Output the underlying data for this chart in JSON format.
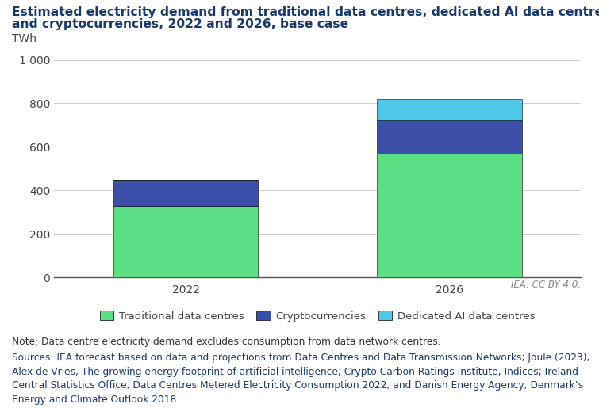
{
  "title_line1": "Estimated electricity demand from traditional data centres, dedicated AI data centres",
  "title_line2": "and cryptocurrencies, 2022 and 2026, base case",
  "categories": [
    "2022",
    "2026"
  ],
  "traditional": [
    330,
    570
  ],
  "cryptocurrencies": [
    120,
    150
  ],
  "dedicated_ai": [
    0,
    100
  ],
  "colors": {
    "traditional": "#5de085",
    "cryptocurrencies": "#3b4fa8",
    "dedicated_ai": "#4ec8e8"
  },
  "ylabel": "TWh",
  "ylim": [
    0,
    1050
  ],
  "yticks": [
    0,
    200,
    400,
    600,
    800,
    "1 000"
  ],
  "ytick_values": [
    0,
    200,
    400,
    600,
    800,
    1000
  ],
  "legend_labels": [
    "Traditional data centres",
    "Cryptocurrencies",
    "Dedicated AI data centres"
  ],
  "note_text": "Note: Data centre electricity demand excludes consumption from data network centres.",
  "source_text": "Sources: IEA forecast based on data and projections from Data Centres and Data Transmission Networks; Joule (2023),\nAlex de Vries, The growing energy footprint of artificial intelligence; Crypto Carbon Ratings Institute, Indices; Ireland\nCentral Statistics Office, Data Centres Metered Electricity Consumption 2022; and Danish Energy Agency, Denmark’s\nEnergy and Climate Outlook 2018.",
  "iea_credit": "IEA. CC BY 4.0.",
  "background_color": "#ffffff",
  "title_color": "#1a3a6b",
  "axis_color": "#444444",
  "grid_color": "#cccccc",
  "title_fontsize": 11.2,
  "axis_fontsize": 10,
  "legend_fontsize": 9.5,
  "note_fontsize": 8.8,
  "source_fontsize": 8.8
}
